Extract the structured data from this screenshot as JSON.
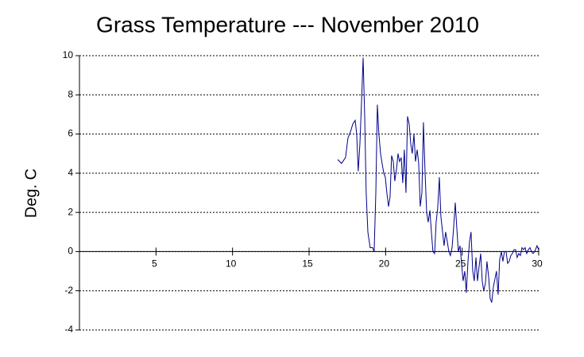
{
  "chart_data": {
    "type": "line",
    "title": "Grass Temperature --- November 2010",
    "y_label": "Deg. C",
    "x": [
      16.87,
      17.12,
      17.38,
      17.54,
      17.7,
      17.85,
      18.01,
      18.11,
      18.21,
      18.32,
      18.42,
      18.53,
      18.63,
      18.73,
      18.84,
      18.99,
      19.15,
      19.25,
      19.36,
      19.46,
      19.56,
      19.67,
      19.77,
      19.88,
      19.98,
      20.08,
      20.19,
      20.29,
      20.39,
      20.5,
      20.6,
      20.71,
      20.81,
      20.91,
      21.02,
      21.12,
      21.22,
      21.33,
      21.43,
      21.54,
      21.64,
      21.74,
      21.85,
      21.95,
      22.06,
      22.16,
      22.26,
      22.37,
      22.47,
      22.57,
      22.68,
      22.78,
      22.89,
      22.99,
      23.09,
      23.2,
      23.3,
      23.4,
      23.51,
      23.61,
      23.72,
      23.82,
      23.92,
      24.03,
      24.13,
      24.23,
      24.34,
      24.44,
      24.55,
      24.65,
      24.75,
      24.86,
      24.96,
      25.06,
      25.17,
      25.27,
      25.38,
      25.48,
      25.58,
      25.69,
      25.79,
      25.9,
      26.0,
      26.1,
      26.21,
      26.31,
      26.41,
      26.52,
      26.62,
      26.73,
      26.83,
      26.93,
      27.04,
      27.14,
      27.24,
      27.35,
      27.45,
      27.56,
      27.66,
      27.76,
      27.87,
      27.97,
      28.07,
      28.18,
      28.28,
      28.39,
      28.49,
      28.59,
      28.7,
      28.8,
      28.91,
      29.01,
      29.11,
      29.22,
      29.32,
      29.43,
      29.53,
      29.63,
      29.74,
      29.89,
      29.99
    ],
    "values": [
      4.7,
      4.5,
      4.8,
      5.8,
      6.1,
      6.5,
      6.7,
      6.0,
      4.1,
      5.5,
      7.5,
      9.9,
      7.0,
      3.0,
      1.0,
      0.2,
      0.2,
      0.0,
      3.0,
      7.5,
      6.0,
      5.0,
      4.5,
      4.0,
      3.8,
      3.0,
      2.3,
      2.8,
      4.9,
      4.6,
      3.6,
      4.2,
      5.0,
      4.6,
      4.8,
      3.5,
      5.2,
      3.0,
      6.9,
      6.5,
      5.5,
      5.0,
      6.0,
      4.6,
      5.2,
      4.5,
      2.3,
      3.0,
      6.6,
      4.2,
      2.0,
      1.5,
      2.1,
      1.0,
      0.0,
      -0.1,
      1.5,
      2.2,
      3.8,
      1.8,
      1.0,
      0.3,
      1.0,
      0.5,
      0.0,
      -0.2,
      0.2,
      1.2,
      2.5,
      1.2,
      0.0,
      0.3,
      -0.6,
      -1.5,
      -1.0,
      -2.1,
      -0.5,
      0.5,
      1.0,
      -1.0,
      -1.5,
      -0.3,
      -1.5,
      -0.8,
      -0.1,
      -1.5,
      -2.0,
      -1.6,
      -0.5,
      -1.3,
      -2.4,
      -2.6,
      -1.8,
      -1.4,
      -1.0,
      -2.2,
      -0.4,
      0.0,
      -0.5,
      0.0,
      0.0,
      -0.6,
      -0.5,
      -0.2,
      -0.1,
      0.1,
      0.1,
      -0.3,
      -0.1,
      -0.2,
      0.2,
      0.1,
      0.2,
      -0.1,
      0.1,
      0.2,
      0.0,
      -0.1,
      0.0,
      0.3,
      0.1
    ],
    "color": "#00008b",
    "xlim": [
      0,
      30
    ],
    "xticks": [
      5,
      10,
      15,
      20,
      25,
      30
    ],
    "ylim": [
      -4,
      10
    ],
    "yticks": [
      -4,
      -2,
      0,
      2,
      4,
      6,
      8,
      10
    ],
    "grid": true
  }
}
